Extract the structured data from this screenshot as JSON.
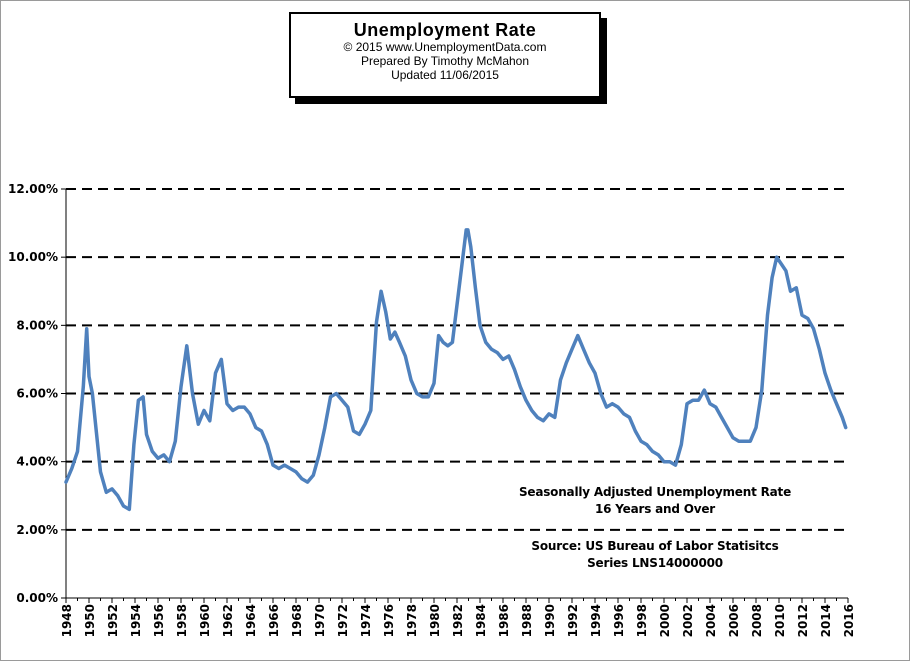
{
  "title_box": {
    "title": "Unemployment  Rate",
    "line1": "© 2015  www.UnemploymentData.com",
    "line2": "Prepared  By Timothy McMahon",
    "line3": "Updated  11/06/2015"
  },
  "annotations": {
    "a1": "Seasonally Adjusted Unemployment Rate",
    "a2": "16 Years and Over",
    "a3": "Source:  US  Bureau of Labor Statisitcs",
    "a4": "Series LNS14000000"
  },
  "chart_data": {
    "type": "line",
    "xlim": [
      1948,
      2016
    ],
    "ylim": [
      0,
      12
    ],
    "grid": true,
    "y_ticks": [
      "0.00%",
      "2.00%",
      "4.00%",
      "6.00%",
      "8.00%",
      "10.00%",
      "12.00%"
    ],
    "x_ticks": [
      "1948",
      "1950",
      "1952",
      "1954",
      "1956",
      "1958",
      "1960",
      "1962",
      "1964",
      "1966",
      "1968",
      "1970",
      "1972",
      "1974",
      "1976",
      "1978",
      "1980",
      "1982",
      "1984",
      "1986",
      "1988",
      "1990",
      "1992",
      "1994",
      "1996",
      "1998",
      "2000",
      "2002",
      "2004",
      "2006",
      "2008",
      "2010",
      "2012",
      "2014",
      "2016"
    ],
    "series": [
      {
        "color": "#4f81bd",
        "x": [
          1948.0,
          1948.5,
          1949.0,
          1949.5,
          1949.8,
          1950.0,
          1950.3,
          1950.6,
          1951.0,
          1951.5,
          1952.0,
          1952.5,
          1953.0,
          1953.5,
          1953.9,
          1954.3,
          1954.7,
          1955.0,
          1955.5,
          1956.0,
          1956.5,
          1957.0,
          1957.5,
          1958.0,
          1958.5,
          1959.0,
          1959.5,
          1960.0,
          1960.5,
          1961.0,
          1961.5,
          1962.0,
          1962.5,
          1963.0,
          1963.5,
          1964.0,
          1964.5,
          1965.0,
          1965.5,
          1966.0,
          1966.5,
          1967.0,
          1967.5,
          1968.0,
          1968.5,
          1969.0,
          1969.5,
          1970.0,
          1970.5,
          1971.0,
          1971.5,
          1972.0,
          1972.5,
          1973.0,
          1973.5,
          1974.0,
          1974.5,
          1975.0,
          1975.4,
          1975.8,
          1976.2,
          1976.6,
          1977.0,
          1977.5,
          1978.0,
          1978.5,
          1979.0,
          1979.5,
          1980.0,
          1980.4,
          1980.8,
          1981.2,
          1981.6,
          1982.0,
          1982.4,
          1982.8,
          1982.95,
          1983.2,
          1983.6,
          1984.0,
          1984.5,
          1985.0,
          1985.5,
          1986.0,
          1986.5,
          1987.0,
          1987.5,
          1988.0,
          1988.5,
          1989.0,
          1989.5,
          1990.0,
          1990.5,
          1991.0,
          1991.5,
          1992.0,
          1992.5,
          1993.0,
          1993.5,
          1994.0,
          1994.5,
          1995.0,
          1995.5,
          1996.0,
          1996.5,
          1997.0,
          1997.5,
          1998.0,
          1998.5,
          1999.0,
          1999.5,
          2000.0,
          2000.5,
          2001.0,
          2001.5,
          2002.0,
          2002.5,
          2003.0,
          2003.5,
          2004.0,
          2004.5,
          2005.0,
          2005.5,
          2006.0,
          2006.5,
          2007.0,
          2007.5,
          2008.0,
          2008.5,
          2009.0,
          2009.4,
          2009.8,
          2010.2,
          2010.6,
          2011.0,
          2011.5,
          2012.0,
          2012.5,
          2013.0,
          2013.5,
          2014.0,
          2014.5,
          2015.0,
          2015.5,
          2015.8
        ],
        "y": [
          3.4,
          3.8,
          4.3,
          6.2,
          7.9,
          6.5,
          6.0,
          5.0,
          3.7,
          3.1,
          3.2,
          3.0,
          2.7,
          2.6,
          4.5,
          5.8,
          5.9,
          4.8,
          4.3,
          4.1,
          4.2,
          4.0,
          4.6,
          6.2,
          7.4,
          6.0,
          5.1,
          5.5,
          5.2,
          6.6,
          7.0,
          5.7,
          5.5,
          5.6,
          5.6,
          5.4,
          5.0,
          4.9,
          4.5,
          3.9,
          3.8,
          3.9,
          3.8,
          3.7,
          3.5,
          3.4,
          3.6,
          4.2,
          5.0,
          5.9,
          6.0,
          5.8,
          5.6,
          4.9,
          4.8,
          5.1,
          5.5,
          8.1,
          9.0,
          8.4,
          7.6,
          7.8,
          7.5,
          7.1,
          6.4,
          6.0,
          5.9,
          5.9,
          6.3,
          7.7,
          7.5,
          7.4,
          7.5,
          8.6,
          9.7,
          10.8,
          10.8,
          10.3,
          9.1,
          8.0,
          7.5,
          7.3,
          7.2,
          7.0,
          7.1,
          6.7,
          6.2,
          5.8,
          5.5,
          5.3,
          5.2,
          5.4,
          5.3,
          6.4,
          6.9,
          7.3,
          7.7,
          7.3,
          6.9,
          6.6,
          6.0,
          5.6,
          5.7,
          5.6,
          5.4,
          5.3,
          4.9,
          4.6,
          4.5,
          4.3,
          4.2,
          4.0,
          4.0,
          3.9,
          4.5,
          5.7,
          5.8,
          5.8,
          6.1,
          5.7,
          5.6,
          5.3,
          5.0,
          4.7,
          4.6,
          4.6,
          4.6,
          5.0,
          6.1,
          8.3,
          9.4,
          10.0,
          9.8,
          9.6,
          9.0,
          9.1,
          8.3,
          8.2,
          7.9,
          7.3,
          6.6,
          6.1,
          5.7,
          5.3,
          5.0
        ]
      }
    ]
  }
}
